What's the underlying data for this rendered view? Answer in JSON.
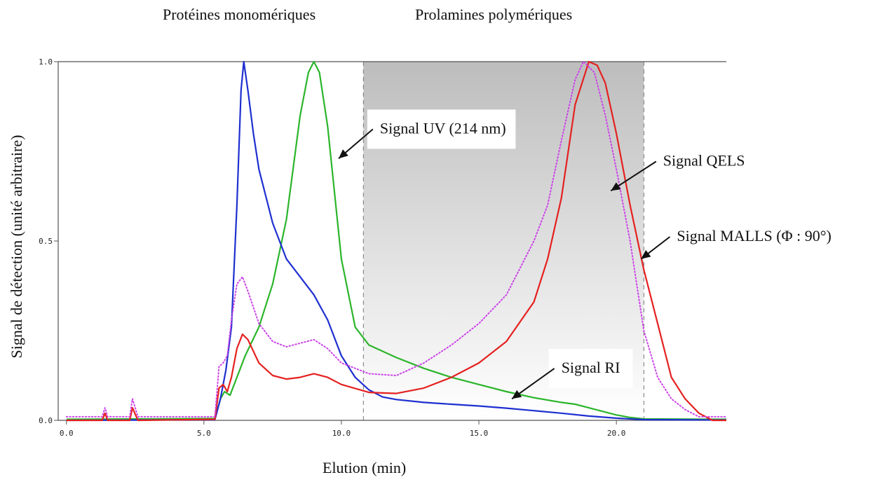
{
  "chart_data": {
    "type": "line",
    "title": "",
    "xlabel": "Elution (min)",
    "ylabel": "Signal de détection (unité arbitraire)",
    "xlim": [
      -0.3,
      24
    ],
    "ylim": [
      0,
      1
    ],
    "x_ticks": [
      "0.0",
      "5.0",
      "10.0",
      "15.0",
      "20.0"
    ],
    "y_ticks": [
      "0.0",
      "0.5",
      "1.0"
    ],
    "region_labels": {
      "left": "Protéines monomériques",
      "right": "Prolamines polymériques"
    },
    "shaded_region": {
      "x_start": 10.8,
      "x_end": 21.0
    },
    "series": [
      {
        "name": "Signal UV (214 nm)",
        "color": "#2bb52b",
        "style": "solid",
        "points": [
          [
            0,
            0.003
          ],
          [
            5.4,
            0.005
          ],
          [
            5.6,
            0.06
          ],
          [
            5.75,
            0.08
          ],
          [
            5.95,
            0.07
          ],
          [
            6.2,
            0.12
          ],
          [
            6.5,
            0.18
          ],
          [
            7.0,
            0.26
          ],
          [
            7.5,
            0.38
          ],
          [
            8.0,
            0.56
          ],
          [
            8.5,
            0.85
          ],
          [
            8.8,
            0.97
          ],
          [
            9.0,
            1.0
          ],
          [
            9.2,
            0.97
          ],
          [
            9.5,
            0.82
          ],
          [
            10.0,
            0.45
          ],
          [
            10.5,
            0.26
          ],
          [
            11.0,
            0.21
          ],
          [
            12.0,
            0.175
          ],
          [
            13.0,
            0.145
          ],
          [
            14.0,
            0.12
          ],
          [
            15.0,
            0.1
          ],
          [
            16.0,
            0.08
          ],
          [
            17.0,
            0.063
          ],
          [
            18.0,
            0.05
          ],
          [
            18.5,
            0.045
          ],
          [
            19.0,
            0.035
          ],
          [
            19.5,
            0.025
          ],
          [
            20.0,
            0.015
          ],
          [
            20.5,
            0.008
          ],
          [
            21.0,
            0.004
          ],
          [
            24,
            0.003
          ]
        ]
      },
      {
        "name": "Signal RI",
        "color": "#1e2fd0",
        "style": "solid",
        "points": [
          [
            0,
            0.0
          ],
          [
            5.4,
            0.002
          ],
          [
            5.6,
            0.06
          ],
          [
            5.8,
            0.14
          ],
          [
            6.0,
            0.26
          ],
          [
            6.2,
            0.6
          ],
          [
            6.35,
            0.92
          ],
          [
            6.45,
            1.0
          ],
          [
            6.6,
            0.92
          ],
          [
            6.8,
            0.8
          ],
          [
            7.0,
            0.7
          ],
          [
            7.5,
            0.55
          ],
          [
            8.0,
            0.45
          ],
          [
            8.5,
            0.4
          ],
          [
            9.0,
            0.35
          ],
          [
            9.5,
            0.28
          ],
          [
            10.0,
            0.18
          ],
          [
            10.5,
            0.12
          ],
          [
            11.0,
            0.085
          ],
          [
            11.5,
            0.065
          ],
          [
            12.0,
            0.058
          ],
          [
            13.0,
            0.05
          ],
          [
            14.0,
            0.045
          ],
          [
            15.0,
            0.04
          ],
          [
            16.0,
            0.034
          ],
          [
            17.0,
            0.027
          ],
          [
            18.0,
            0.02
          ],
          [
            19.0,
            0.012
          ],
          [
            20.0,
            0.006
          ],
          [
            21.0,
            0.002
          ],
          [
            24,
            0.001
          ]
        ]
      },
      {
        "name": "Signal QELS",
        "color": "#e52020",
        "style": "solid",
        "points": [
          [
            0,
            0.0
          ],
          [
            1.3,
            0.0
          ],
          [
            1.4,
            0.02
          ],
          [
            1.5,
            0.0
          ],
          [
            2.3,
            0.0
          ],
          [
            2.4,
            0.035
          ],
          [
            2.6,
            0.0
          ],
          [
            5.4,
            0.003
          ],
          [
            5.55,
            0.09
          ],
          [
            5.7,
            0.1
          ],
          [
            5.85,
            0.08
          ],
          [
            6.0,
            0.12
          ],
          [
            6.2,
            0.2
          ],
          [
            6.4,
            0.24
          ],
          [
            6.6,
            0.225
          ],
          [
            7.0,
            0.16
          ],
          [
            7.5,
            0.125
          ],
          [
            8.0,
            0.115
          ],
          [
            8.5,
            0.12
          ],
          [
            9.0,
            0.13
          ],
          [
            9.5,
            0.12
          ],
          [
            10.0,
            0.1
          ],
          [
            11.0,
            0.078
          ],
          [
            12.0,
            0.075
          ],
          [
            13.0,
            0.09
          ],
          [
            14.0,
            0.12
          ],
          [
            15.0,
            0.16
          ],
          [
            16.0,
            0.22
          ],
          [
            17.0,
            0.33
          ],
          [
            17.5,
            0.45
          ],
          [
            18.0,
            0.62
          ],
          [
            18.5,
            0.88
          ],
          [
            19.0,
            1.0
          ],
          [
            19.3,
            0.99
          ],
          [
            19.6,
            0.94
          ],
          [
            20.0,
            0.8
          ],
          [
            20.5,
            0.6
          ],
          [
            21.0,
            0.42
          ],
          [
            21.5,
            0.27
          ],
          [
            22.0,
            0.12
          ],
          [
            22.5,
            0.06
          ],
          [
            23.0,
            0.02
          ],
          [
            23.5,
            0.0
          ],
          [
            24,
            0.0
          ]
        ]
      },
      {
        "name": "Signal MALLS (Φ : 90°)",
        "color": "#cc44e8",
        "style": "dotted",
        "points": [
          [
            0,
            0.01
          ],
          [
            1.3,
            0.01
          ],
          [
            1.4,
            0.035
          ],
          [
            1.5,
            0.01
          ],
          [
            2.3,
            0.01
          ],
          [
            2.4,
            0.06
          ],
          [
            2.6,
            0.01
          ],
          [
            5.4,
            0.01
          ],
          [
            5.55,
            0.15
          ],
          [
            5.7,
            0.16
          ],
          [
            5.85,
            0.18
          ],
          [
            6.0,
            0.28
          ],
          [
            6.2,
            0.38
          ],
          [
            6.4,
            0.4
          ],
          [
            6.6,
            0.36
          ],
          [
            7.0,
            0.27
          ],
          [
            7.5,
            0.22
          ],
          [
            8.0,
            0.205
          ],
          [
            8.5,
            0.215
          ],
          [
            9.0,
            0.225
          ],
          [
            9.5,
            0.2
          ],
          [
            10.0,
            0.16
          ],
          [
            11.0,
            0.13
          ],
          [
            12.0,
            0.125
          ],
          [
            13.0,
            0.16
          ],
          [
            14.0,
            0.21
          ],
          [
            15.0,
            0.27
          ],
          [
            16.0,
            0.35
          ],
          [
            17.0,
            0.5
          ],
          [
            17.5,
            0.6
          ],
          [
            18.0,
            0.78
          ],
          [
            18.5,
            0.95
          ],
          [
            18.8,
            1.0
          ],
          [
            19.2,
            0.97
          ],
          [
            19.6,
            0.85
          ],
          [
            20.0,
            0.7
          ],
          [
            20.5,
            0.5
          ],
          [
            21.0,
            0.25
          ],
          [
            21.5,
            0.12
          ],
          [
            22.0,
            0.06
          ],
          [
            22.5,
            0.03
          ],
          [
            23.0,
            0.01
          ],
          [
            24,
            0.01
          ]
        ]
      }
    ],
    "annotations": [
      {
        "text": "Signal UV (214 nm)",
        "box": true,
        "target": [
          9.9,
          0.73
        ],
        "text_pos": [
          11.4,
          0.8
        ]
      },
      {
        "text": "Signal QELS",
        "box": false,
        "target": [
          19.8,
          0.64
        ],
        "text_pos": [
          21.7,
          0.71
        ]
      },
      {
        "text": "Signal MALLS (Φ : 90°)",
        "box": false,
        "target": [
          20.9,
          0.45
        ],
        "text_pos": [
          22.2,
          0.5
        ]
      },
      {
        "text": "Signal RI",
        "box": true,
        "target": [
          16.2,
          0.06
        ],
        "text_pos": [
          18.0,
          0.133
        ]
      }
    ]
  }
}
